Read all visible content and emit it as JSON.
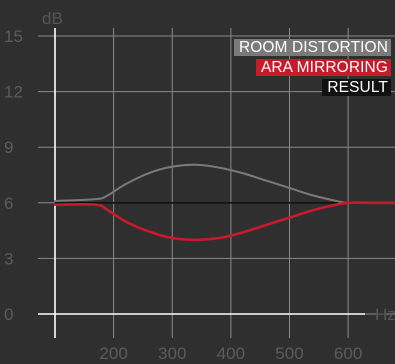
{
  "colors": {
    "background": "#2f2f2f",
    "grid": "#8a8a8a",
    "axis": "#ffffff",
    "room_distortion": "#7a7a7a",
    "ara_mirroring": "#c81a2a",
    "result": "#111111"
  },
  "chart_data": {
    "type": "line",
    "title": "",
    "xlabel": "Hz",
    "ylabel": "dB",
    "xlim": [
      100,
      680
    ],
    "ylim": [
      0,
      15
    ],
    "x_ticks": [
      200,
      300,
      400,
      500,
      600
    ],
    "x_tick_labels": [
      "200",
      "300",
      "400",
      "500",
      "600"
    ],
    "y_ticks": [
      0,
      3,
      6,
      9,
      12,
      15
    ],
    "y_tick_labels": [
      "0",
      "3",
      "6",
      "9",
      "12",
      "15"
    ],
    "grid": true,
    "legend_position": "top-right",
    "series": [
      {
        "name": "ROOM DISTORTION",
        "color": "#7a7a7a",
        "x": [
          100,
          170,
          190,
          220,
          260,
          300,
          340,
          380,
          420,
          460,
          500,
          540,
          580,
          600,
          640,
          680
        ],
        "y": [
          6.1,
          6.2,
          6.4,
          7.0,
          7.6,
          7.95,
          8.05,
          7.9,
          7.6,
          7.2,
          6.8,
          6.4,
          6.1,
          6.0,
          6.0,
          6.0
        ]
      },
      {
        "name": "ARA MIRRORING",
        "color": "#c81a2a",
        "x": [
          100,
          170,
          190,
          220,
          260,
          300,
          340,
          380,
          420,
          460,
          500,
          540,
          580,
          600,
          640,
          680
        ],
        "y": [
          5.9,
          5.9,
          5.6,
          5.0,
          4.45,
          4.1,
          4.0,
          4.1,
          4.4,
          4.8,
          5.2,
          5.6,
          5.9,
          6.0,
          6.0,
          6.0
        ]
      },
      {
        "name": "RESULT",
        "color": "#111111",
        "x": [
          100,
          680
        ],
        "y": [
          6,
          6
        ]
      }
    ]
  }
}
